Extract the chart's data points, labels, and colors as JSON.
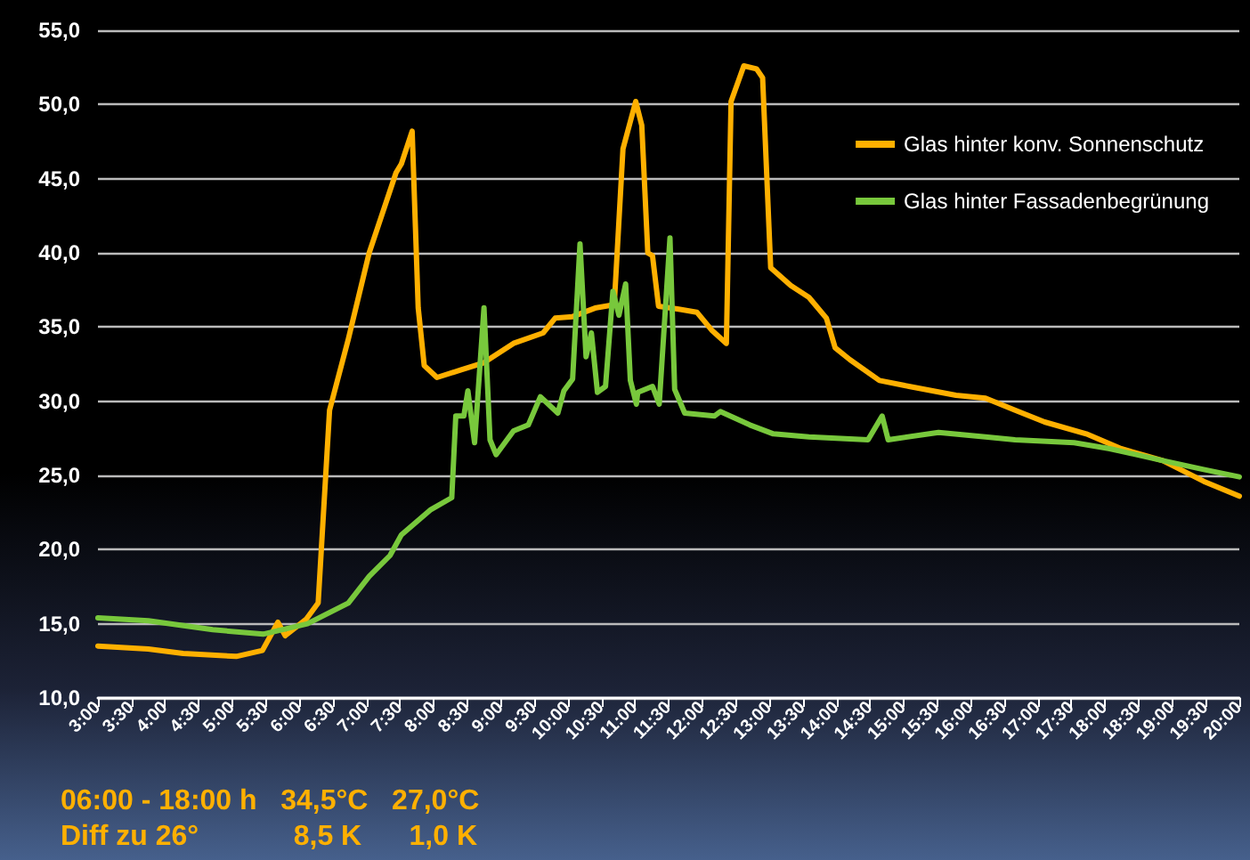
{
  "chart_data": {
    "type": "line",
    "marker": "none",
    "line_style": "solid",
    "grid": "y",
    "legend": "top right",
    "xlim": [
      3,
      20
    ],
    "xticks": [
      {
        "value": 3,
        "label": "3:00"
      },
      {
        "value": 3.5,
        "label": "3:30"
      },
      {
        "value": 4,
        "label": "4:00"
      },
      {
        "value": 4.5,
        "label": "4:30"
      },
      {
        "value": 5,
        "label": "5:00"
      },
      {
        "value": 5.5,
        "label": "5:30"
      },
      {
        "value": 6,
        "label": "6:00"
      },
      {
        "value": 6.5,
        "label": "6:30"
      },
      {
        "value": 7,
        "label": "7:00"
      },
      {
        "value": 7.5,
        "label": "7:30"
      },
      {
        "value": 8,
        "label": "8:00"
      },
      {
        "value": 8.5,
        "label": "8:30"
      },
      {
        "value": 9,
        "label": "9:00"
      },
      {
        "value": 9.5,
        "label": "9:30"
      },
      {
        "value": 10,
        "label": "10:00"
      },
      {
        "value": 10.5,
        "label": "10:30"
      },
      {
        "value": 11,
        "label": "11:00"
      },
      {
        "value": 11.5,
        "label": "11:30"
      },
      {
        "value": 12,
        "label": "12:00"
      },
      {
        "value": 12.5,
        "label": "12:30"
      },
      {
        "value": 13,
        "label": "13:00"
      },
      {
        "value": 13.5,
        "label": "13:30"
      },
      {
        "value": 14,
        "label": "14:00"
      },
      {
        "value": 14.5,
        "label": "14:30"
      },
      {
        "value": 15,
        "label": "15:00"
      },
      {
        "value": 15.5,
        "label": "15:30"
      },
      {
        "value": 16,
        "label": "16:00"
      },
      {
        "value": 16.5,
        "label": "16:30"
      },
      {
        "value": 17,
        "label": "17:00"
      },
      {
        "value": 17.5,
        "label": "17:30"
      },
      {
        "value": 18,
        "label": "18:00"
      },
      {
        "value": 18.5,
        "label": "18:30"
      },
      {
        "value": 19,
        "label": "19:00"
      },
      {
        "value": 19.5,
        "label": "19:30"
      },
      {
        "value": 20,
        "label": "20:00"
      }
    ],
    "ylim": [
      10,
      55
    ],
    "yticks": [
      {
        "value": 10,
        "label": "10,0"
      },
      {
        "value": 15,
        "label": "15,0"
      },
      {
        "value": 20,
        "label": "20,0"
      },
      {
        "value": 25,
        "label": "25,0"
      },
      {
        "value": 30,
        "label": "30,0"
      },
      {
        "value": 35,
        "label": "35,0"
      },
      {
        "value": 40,
        "label": "40,0"
      },
      {
        "value": 45,
        "label": "45,0"
      },
      {
        "value": 50,
        "label": "50,0"
      },
      {
        "value": 55,
        "label": "55,0"
      }
    ],
    "series": [
      {
        "name": "Glas hinter konv. Sonnenschutz",
        "color": "#ffb000",
        "x": [
          3,
          3.75,
          4.27,
          5.06,
          5.45,
          5.68,
          5.79,
          6.1,
          6.28,
          6.45,
          6.73,
          7.04,
          7.44,
          7.52,
          7.68,
          7.77,
          7.86,
          8.05,
          8.4,
          8.75,
          9.19,
          9.63,
          9.81,
          10.07,
          10.42,
          10.69,
          10.82,
          11.01,
          11.1,
          11.19,
          11.26,
          11.35,
          11.65,
          11.92,
          12.14,
          12.36,
          12.43,
          12.62,
          12.81,
          12.9,
          13.02,
          13.32,
          13.59,
          13.85,
          13.98,
          14.2,
          14.64,
          15.08,
          15.78,
          16.22,
          16.66,
          17.1,
          17.72,
          18.24,
          18.86,
          19.47,
          20
        ],
        "values": [
          13.5,
          13.3,
          13.0,
          12.8,
          13.2,
          15.1,
          14.2,
          15.3,
          16.4,
          29.4,
          34.2,
          40.0,
          45.4,
          46.0,
          48.2,
          36.3,
          32.4,
          31.6,
          32.1,
          32.6,
          33.9,
          34.6,
          35.6,
          35.7,
          36.3,
          36.5,
          47.0,
          50.2,
          48.6,
          40.0,
          39.8,
          36.4,
          36.2,
          36.0,
          34.8,
          33.9,
          50.2,
          52.6,
          52.4,
          51.8,
          39.0,
          37.8,
          37.0,
          35.6,
          33.6,
          32.8,
          31.4,
          31.0,
          30.4,
          30.2,
          29.4,
          28.6,
          27.8,
          26.8,
          26.0,
          24.6,
          23.6
        ]
      },
      {
        "name": "Glas hinter Fassadenbegrünung",
        "color": "#78c83c",
        "x": [
          3,
          3.75,
          4.71,
          5.46,
          6.12,
          6.73,
          7.04,
          7.35,
          7.52,
          7.96,
          8.27,
          8.33,
          8.45,
          8.51,
          8.61,
          8.75,
          8.84,
          8.93,
          9.19,
          9.41,
          9.59,
          9.85,
          9.94,
          10.07,
          10.18,
          10.27,
          10.35,
          10.44,
          10.56,
          10.67,
          10.76,
          10.86,
          10.93,
          11.02,
          11.04,
          11.26,
          11.36,
          11.52,
          11.59,
          11.74,
          12.18,
          12.27,
          12.71,
          13.06,
          13.59,
          14.47,
          14.68,
          14.77,
          15.52,
          16.22,
          16.66,
          17.54,
          18.07,
          18.86,
          19.47,
          20
        ],
        "values": [
          15.4,
          15.2,
          14.6,
          14.3,
          15.0,
          16.4,
          18.2,
          19.6,
          21.0,
          22.7,
          23.5,
          29.0,
          29.0,
          30.7,
          27.2,
          36.3,
          27.4,
          26.4,
          28.0,
          28.4,
          30.3,
          29.2,
          30.7,
          31.5,
          40.6,
          33.0,
          34.6,
          30.6,
          31.0,
          37.4,
          35.8,
          37.9,
          31.4,
          29.8,
          30.6,
          31.0,
          29.8,
          41.0,
          30.8,
          29.2,
          29.0,
          29.3,
          28.4,
          27.8,
          27.6,
          27.4,
          29.0,
          27.4,
          27.9,
          27.6,
          27.4,
          27.2,
          26.8,
          26.0,
          25.4,
          24.9
        ]
      }
    ],
    "annotations": [
      "06:00 - 18:00 h   34,5°C   27,0°C",
      "Diff zu 26°            8,5 K      1,0 K"
    ]
  }
}
